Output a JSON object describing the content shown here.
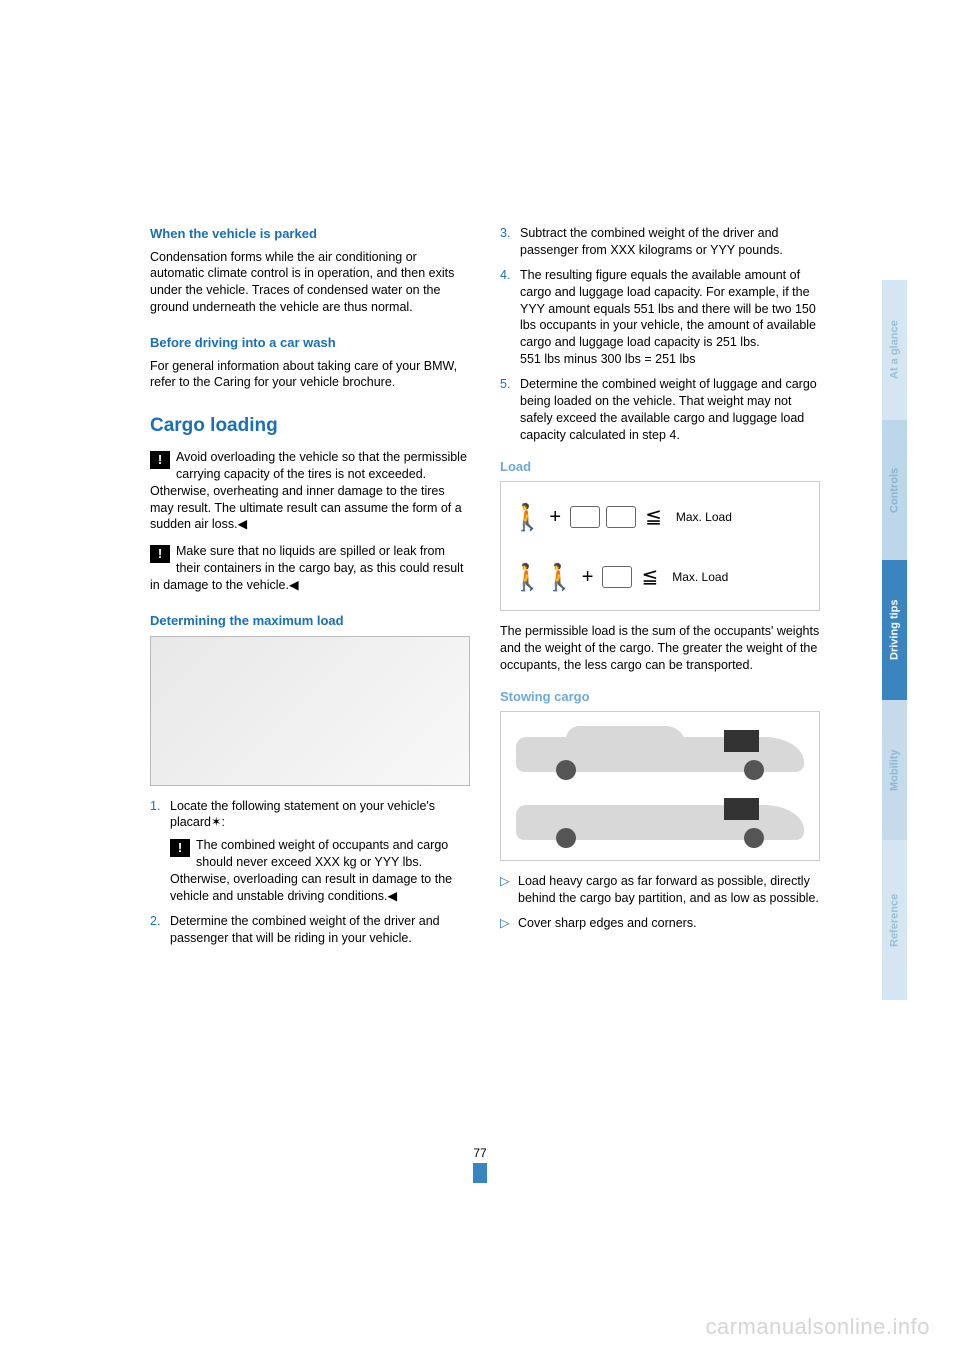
{
  "tabs": {
    "at_a_glance": "At a glance",
    "controls": "Controls",
    "driving_tips": "Driving tips",
    "mobility": "Mobility",
    "reference": "Reference"
  },
  "page_number": "77",
  "watermark": "carmanualsonline.info",
  "left": {
    "parked_h": "When the vehicle is parked",
    "parked_p": "Condensation forms while the air conditioning or automatic climate control is in operation, and then exits under the vehicle. Traces of condensed water on the ground underneath the vehicle are thus normal.",
    "wash_h": "Before driving into a car wash",
    "wash_p": "For general information about taking care of your BMW, refer to the Caring for your vehicle brochure.",
    "cargo_h": "Cargo loading",
    "warn1": "Avoid overloading the vehicle so that the permissible carrying capacity of the tires is not exceeded. Otherwise, overheating and inner damage to the tires may result. The ultimate result can assume the form of a sudden air loss.◀",
    "warn2": "Make sure that no liquids are spilled or leak from their containers in the cargo bay, as this could result in damage to the vehicle.◀",
    "det_h": "Determining the maximum load",
    "step1_intro": "Locate the following statement on your vehicle's placard✶:",
    "step1_warn": "The combined weight of occupants and cargo should never exceed XXX kg or YYY lbs. Otherwise, overloading can result in damage to the vehicle and unstable driving conditions.◀",
    "step2": "Determine the combined weight of the driver and passenger that will be riding in your vehicle."
  },
  "right": {
    "step3": "Subtract the combined weight of the driver and passenger from XXX kilograms or YYY pounds.",
    "step4": "The resulting figure equals the available amount of cargo and luggage load capacity. For example, if the YYY amount equals 551 lbs and there will be two 150 lbs occupants in your vehicle, the amount of available cargo and luggage load capacity is 251 lbs.",
    "step4b": "551 lbs minus 300 lbs = 251 lbs",
    "step5": "Determine the combined weight of luggage and cargo being loaded on the vehicle. That weight may not safely exceed the available cargo and luggage load capacity calculated in step 4.",
    "load_h": "Load",
    "load_max1": "Max. Load",
    "load_leq": "≦",
    "load_plus": "+",
    "load_max2": "Max. Load",
    "load_p": "The permissible load is the sum of the occupants' weights and the weight of the cargo. The greater the weight of the occupants, the less cargo can be transported.",
    "stow_h": "Stowing cargo",
    "bullet1": "Load heavy cargo as far forward as possible, directly behind the cargo bay partition, and as low as possible.",
    "bullet2": "Cover sharp edges and corners."
  },
  "nums": {
    "n1": "1.",
    "n2": "2.",
    "n3": "3.",
    "n4": "4.",
    "n5": "5.",
    "tri": "▷"
  },
  "colors": {
    "heading_blue": "#1a6fb5",
    "light_blue": "#6fa8d8",
    "tab_active_bg": "#3a85c0",
    "tab_inactive_bg": "#d5e6f2",
    "watermark_gray": "#d5d5d5"
  }
}
